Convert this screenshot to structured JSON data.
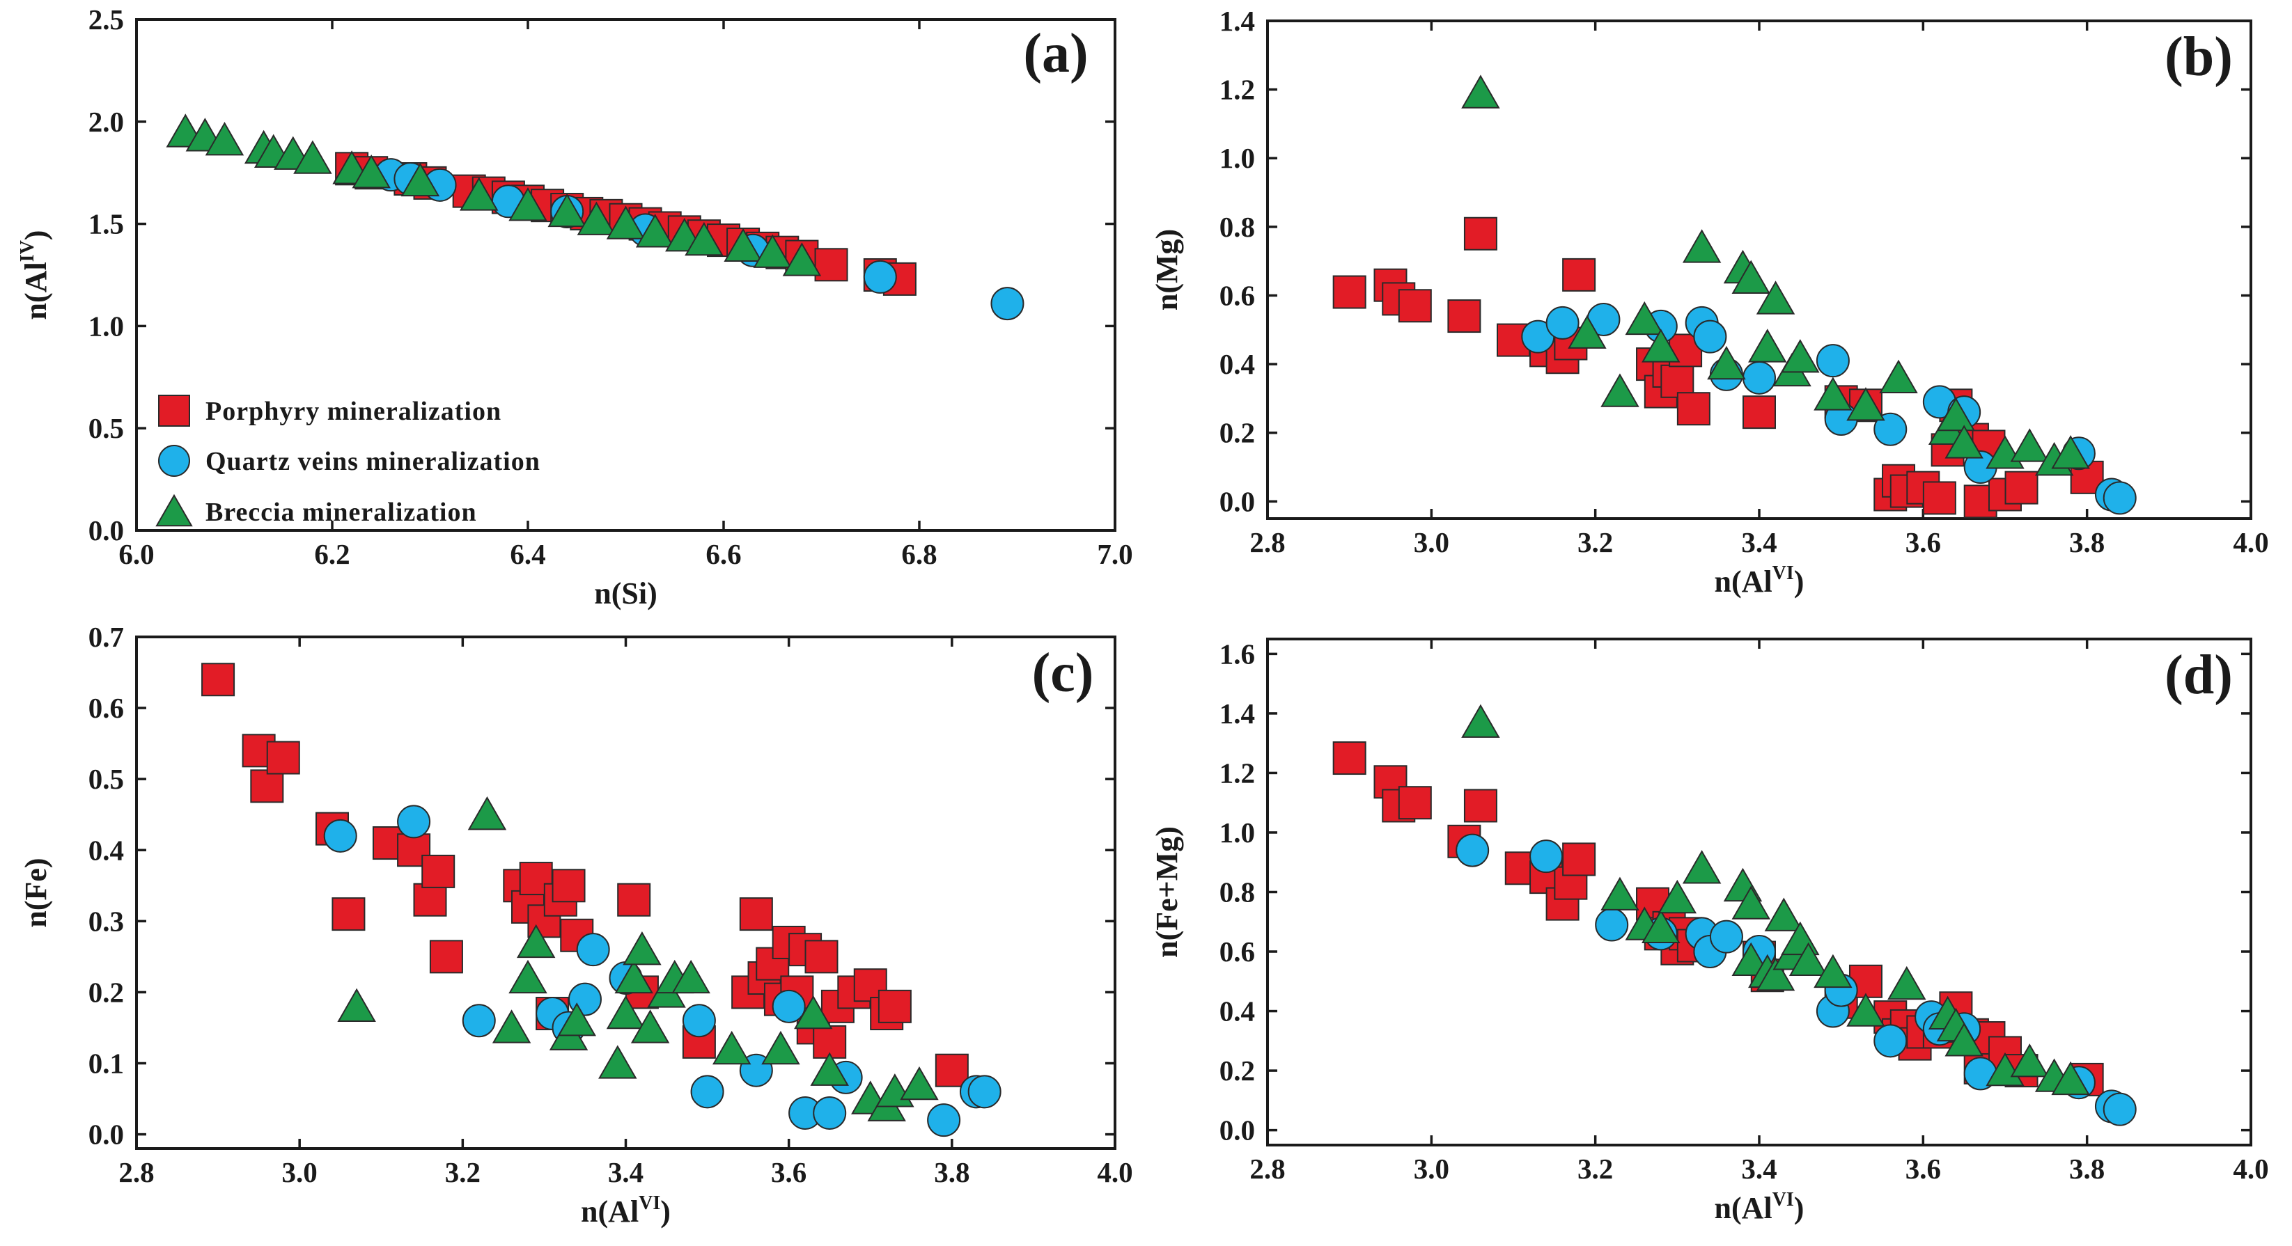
{
  "series_styles": {
    "porphyry": {
      "color": "#e21c26",
      "shape": "square"
    },
    "quartz": {
      "color": "#1fb1ea",
      "shape": "circle"
    },
    "breccia": {
      "color": "#1c9a48",
      "shape": "triangle"
    }
  },
  "legend": {
    "porphyry": "Porphyry mineralization",
    "quartz": "Quartz veins mineralization",
    "breccia": "Breccia mineralization"
  },
  "chart_data": [
    {
      "id": "a",
      "type": "scatter",
      "panel_label": "(a)",
      "xlabel": {
        "base": "n(Si)",
        "sup": ""
      },
      "ylabel": {
        "base": "n(Al",
        "sup": "IV",
        "tail": ")"
      },
      "xlim": [
        6.0,
        7.0
      ],
      "ylim": [
        0.0,
        2.5
      ],
      "xticks": [
        "6.0",
        "6.2",
        "6.4",
        "6.6",
        "6.8",
        "7.0"
      ],
      "yticks": [
        "0.0",
        "0.5",
        "1.0",
        "1.5",
        "2.0",
        "2.5"
      ],
      "legend_position": "bottom-left",
      "series": [
        {
          "name": "Porphyry mineralization",
          "key": "porphyry",
          "x": [
            6.22,
            6.24,
            6.28,
            6.3,
            6.34,
            6.36,
            6.38,
            6.4,
            6.42,
            6.44,
            6.46,
            6.48,
            6.5,
            6.52,
            6.54,
            6.56,
            6.58,
            6.6,
            6.62,
            6.64,
            6.66,
            6.68,
            6.71,
            6.76,
            6.78
          ],
          "y": [
            1.77,
            1.75,
            1.72,
            1.7,
            1.66,
            1.65,
            1.63,
            1.61,
            1.59,
            1.57,
            1.55,
            1.54,
            1.52,
            1.5,
            1.48,
            1.46,
            1.44,
            1.42,
            1.4,
            1.38,
            1.36,
            1.34,
            1.3,
            1.25,
            1.23
          ]
        },
        {
          "name": "Quartz veins mineralization",
          "key": "quartz",
          "x": [
            6.26,
            6.28,
            6.31,
            6.38,
            6.44,
            6.52,
            6.63,
            6.76,
            6.89
          ],
          "y": [
            1.74,
            1.72,
            1.69,
            1.61,
            1.56,
            1.47,
            1.37,
            1.24,
            1.11
          ]
        },
        {
          "name": "Breccia mineralization",
          "key": "breccia",
          "x": [
            6.05,
            6.07,
            6.09,
            6.13,
            6.14,
            6.16,
            6.18,
            6.22,
            6.24,
            6.29,
            6.35,
            6.4,
            6.44,
            6.47,
            6.5,
            6.53,
            6.56,
            6.58,
            6.62,
            6.65,
            6.68
          ],
          "y": [
            1.95,
            1.93,
            1.91,
            1.87,
            1.85,
            1.84,
            1.82,
            1.77,
            1.75,
            1.71,
            1.64,
            1.59,
            1.56,
            1.52,
            1.5,
            1.46,
            1.44,
            1.42,
            1.39,
            1.36,
            1.32
          ]
        }
      ]
    },
    {
      "id": "b",
      "type": "scatter",
      "panel_label": "(b)",
      "xlabel": {
        "base": "n(Al",
        "sup": "VI",
        "tail": ")"
      },
      "ylabel": {
        "base": "n(Mg)",
        "sup": ""
      },
      "xlim": [
        2.8,
        4.0
      ],
      "ylim": [
        -0.05,
        1.4
      ],
      "xticks": [
        "2.8",
        "3.0",
        "3.2",
        "3.4",
        "3.6",
        "3.8",
        "4.0"
      ],
      "yticks": [
        "0.0",
        "0.2",
        "0.4",
        "0.6",
        "0.8",
        "1.0",
        "1.2",
        "1.4"
      ],
      "series": [
        {
          "name": "Porphyry mineralization",
          "key": "porphyry",
          "x": [
            2.9,
            2.95,
            2.96,
            2.98,
            3.04,
            3.06,
            3.1,
            3.14,
            3.16,
            3.17,
            3.18,
            3.27,
            3.28,
            3.29,
            3.3,
            3.31,
            3.32,
            3.4,
            3.5,
            3.53,
            3.56,
            3.57,
            3.58,
            3.6,
            3.62,
            3.63,
            3.64,
            3.66,
            3.67,
            3.68,
            3.7,
            3.72,
            3.8
          ],
          "y": [
            0.61,
            0.63,
            0.59,
            0.57,
            0.54,
            0.78,
            0.47,
            0.44,
            0.42,
            0.46,
            0.66,
            0.4,
            0.32,
            0.38,
            0.35,
            0.44,
            0.27,
            0.26,
            0.29,
            0.28,
            0.02,
            0.06,
            0.03,
            0.04,
            0.01,
            0.15,
            0.28,
            0.18,
            0.0,
            0.16,
            0.02,
            0.04,
            0.07
          ]
        },
        {
          "name": "Quartz veins mineralization",
          "key": "quartz",
          "x": [
            3.13,
            3.16,
            3.21,
            3.28,
            3.33,
            3.34,
            3.36,
            3.4,
            3.49,
            3.5,
            3.56,
            3.62,
            3.65,
            3.67,
            3.79,
            3.83,
            3.84
          ],
          "y": [
            0.48,
            0.52,
            0.53,
            0.51,
            0.52,
            0.48,
            0.37,
            0.36,
            0.41,
            0.24,
            0.21,
            0.29,
            0.26,
            0.1,
            0.14,
            0.02,
            0.01
          ]
        },
        {
          "name": "Breccia mineralization",
          "key": "breccia",
          "x": [
            3.06,
            3.19,
            3.23,
            3.26,
            3.28,
            3.33,
            3.36,
            3.38,
            3.39,
            3.41,
            3.42,
            3.44,
            3.45,
            3.49,
            3.53,
            3.57,
            3.63,
            3.64,
            3.65,
            3.7,
            3.73,
            3.76,
            3.78
          ],
          "y": [
            1.19,
            0.49,
            0.32,
            0.53,
            0.45,
            0.74,
            0.4,
            0.68,
            0.65,
            0.45,
            0.59,
            0.38,
            0.42,
            0.31,
            0.28,
            0.36,
            0.21,
            0.25,
            0.17,
            0.14,
            0.16,
            0.12,
            0.14
          ]
        }
      ]
    },
    {
      "id": "c",
      "type": "scatter",
      "panel_label": "(c)",
      "xlabel": {
        "base": "n(Al",
        "sup": "VI",
        "tail": ")"
      },
      "ylabel": {
        "base": "n(Fe)",
        "sup": ""
      },
      "xlim": [
        2.8,
        4.0
      ],
      "ylim": [
        -0.02,
        0.7
      ],
      "xticks": [
        "2.8",
        "3.0",
        "3.2",
        "3.4",
        "3.6",
        "3.8",
        "4.0"
      ],
      "yticks": [
        "0.0",
        "0.1",
        "0.2",
        "0.3",
        "0.4",
        "0.5",
        "0.6",
        "0.7"
      ],
      "series": [
        {
          "name": "Porphyry mineralization",
          "key": "porphyry",
          "x": [
            2.9,
            2.95,
            2.96,
            2.98,
            3.04,
            3.06,
            3.11,
            3.14,
            3.16,
            3.17,
            3.18,
            3.27,
            3.28,
            3.29,
            3.3,
            3.31,
            3.32,
            3.33,
            3.34,
            3.41,
            3.42,
            3.49,
            3.55,
            3.56,
            3.57,
            3.58,
            3.59,
            3.6,
            3.61,
            3.62,
            3.63,
            3.64,
            3.65,
            3.66,
            3.68,
            3.7,
            3.72,
            3.73,
            3.8
          ],
          "y": [
            0.64,
            0.54,
            0.49,
            0.53,
            0.43,
            0.31,
            0.41,
            0.4,
            0.33,
            0.37,
            0.25,
            0.35,
            0.32,
            0.36,
            0.3,
            0.17,
            0.33,
            0.35,
            0.28,
            0.33,
            0.2,
            0.13,
            0.2,
            0.31,
            0.22,
            0.24,
            0.19,
            0.27,
            0.2,
            0.26,
            0.15,
            0.25,
            0.13,
            0.18,
            0.2,
            0.21,
            0.17,
            0.18,
            0.09
          ]
        },
        {
          "name": "Quartz veins mineralization",
          "key": "quartz",
          "x": [
            3.05,
            3.14,
            3.22,
            3.31,
            3.33,
            3.35,
            3.36,
            3.4,
            3.49,
            3.5,
            3.56,
            3.6,
            3.62,
            3.65,
            3.67,
            3.79,
            3.83,
            3.84
          ],
          "y": [
            0.42,
            0.44,
            0.16,
            0.17,
            0.15,
            0.19,
            0.26,
            0.22,
            0.16,
            0.06,
            0.09,
            0.18,
            0.03,
            0.03,
            0.08,
            0.02,
            0.06,
            0.06
          ]
        },
        {
          "name": "Breccia mineralization",
          "key": "breccia",
          "x": [
            3.07,
            3.23,
            3.26,
            3.28,
            3.29,
            3.33,
            3.34,
            3.39,
            3.4,
            3.41,
            3.42,
            3.43,
            3.45,
            3.46,
            3.48,
            3.53,
            3.59,
            3.63,
            3.65,
            3.7,
            3.72,
            3.73,
            3.76
          ],
          "y": [
            0.18,
            0.45,
            0.15,
            0.22,
            0.27,
            0.14,
            0.16,
            0.1,
            0.17,
            0.22,
            0.26,
            0.15,
            0.2,
            0.22,
            0.22,
            0.12,
            0.12,
            0.17,
            0.09,
            0.05,
            0.04,
            0.06,
            0.07
          ]
        }
      ]
    },
    {
      "id": "d",
      "type": "scatter",
      "panel_label": "(d)",
      "xlabel": {
        "base": "n(Al",
        "sup": "VI",
        "tail": ")"
      },
      "ylabel": {
        "base": "n(Fe+Mg)",
        "sup": ""
      },
      "xlim": [
        2.8,
        4.0
      ],
      "ylim": [
        -0.05,
        1.65
      ],
      "xticks": [
        "2.8",
        "3.0",
        "3.2",
        "3.4",
        "3.6",
        "3.8",
        "4.0"
      ],
      "yticks": [
        "0.0",
        "0.2",
        "0.4",
        "0.6",
        "0.8",
        "1.0",
        "1.2",
        "1.4",
        "1.6"
      ],
      "series": [
        {
          "name": "Porphyry mineralization",
          "key": "porphyry",
          "x": [
            2.9,
            2.95,
            2.96,
            2.98,
            3.04,
            3.06,
            3.11,
            3.14,
            3.16,
            3.17,
            3.18,
            3.27,
            3.28,
            3.29,
            3.3,
            3.31,
            3.32,
            3.4,
            3.41,
            3.5,
            3.53,
            3.56,
            3.57,
            3.58,
            3.59,
            3.6,
            3.62,
            3.63,
            3.64,
            3.66,
            3.67,
            3.68,
            3.7,
            3.72,
            3.8
          ],
          "y": [
            1.25,
            1.17,
            1.09,
            1.1,
            0.97,
            1.09,
            0.88,
            0.85,
            0.76,
            0.83,
            0.91,
            0.76,
            0.66,
            0.68,
            0.61,
            0.66,
            0.62,
            0.58,
            0.52,
            0.43,
            0.5,
            0.38,
            0.32,
            0.35,
            0.29,
            0.33,
            0.33,
            0.35,
            0.41,
            0.32,
            0.21,
            0.31,
            0.26,
            0.2,
            0.17
          ]
        },
        {
          "name": "Quartz veins mineralization",
          "key": "quartz",
          "x": [
            3.05,
            3.14,
            3.22,
            3.28,
            3.33,
            3.34,
            3.36,
            3.4,
            3.49,
            3.5,
            3.56,
            3.61,
            3.62,
            3.65,
            3.67,
            3.79,
            3.83,
            3.84
          ],
          "y": [
            0.94,
            0.92,
            0.69,
            0.66,
            0.66,
            0.6,
            0.65,
            0.6,
            0.4,
            0.47,
            0.3,
            0.38,
            0.34,
            0.34,
            0.19,
            0.16,
            0.08,
            0.07
          ]
        },
        {
          "name": "Breccia mineralization",
          "key": "breccia",
          "x": [
            3.06,
            3.23,
            3.26,
            3.28,
            3.3,
            3.33,
            3.38,
            3.39,
            3.39,
            3.41,
            3.42,
            3.43,
            3.44,
            3.45,
            3.46,
            3.49,
            3.53,
            3.58,
            3.63,
            3.64,
            3.65,
            3.7,
            3.73,
            3.76,
            3.78
          ],
          "y": [
            1.37,
            0.79,
            0.69,
            0.68,
            0.78,
            0.88,
            0.82,
            0.57,
            0.76,
            0.53,
            0.52,
            0.72,
            0.59,
            0.64,
            0.57,
            0.53,
            0.4,
            0.49,
            0.39,
            0.35,
            0.3,
            0.2,
            0.23,
            0.18,
            0.17
          ]
        }
      ]
    }
  ]
}
